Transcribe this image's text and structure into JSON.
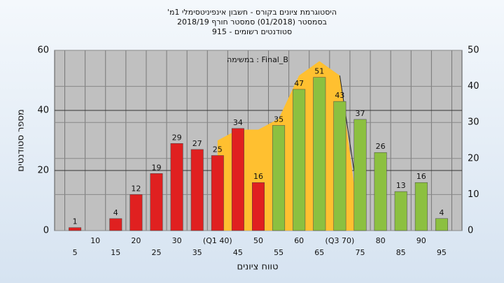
{
  "chart_data": {
    "type": "bar",
    "title": "'היסטוגרמת ציונים בקורס - חשבון אינפיניטסימלי 1מ",
    "subtitle": "בסמסטר  (01/2018)  סמסטר חורף  2018/19",
    "subtitle2": "סטודנטים רשומים - 915",
    "annotation": "במשימה : Final_B",
    "xlabel": "טווח ציונים",
    "ylabel": "מספר סטודנטים",
    "categories": [
      "5",
      "10",
      "15",
      "20",
      "25",
      "30",
      "35",
      "(Q1 40)",
      "45",
      "50",
      "55",
      "60",
      "65",
      "(Q3 70)",
      "75",
      "80",
      "85",
      "90",
      "95"
    ],
    "values": [
      1,
      0,
      4,
      12,
      19,
      29,
      27,
      25,
      34,
      16,
      35,
      47,
      51,
      43,
      37,
      26,
      13,
      16,
      4
    ],
    "colors": [
      "#e02020",
      "#e02020",
      "#e02020",
      "#e02020",
      "#e02020",
      "#e02020",
      "#e02020",
      "#e02020",
      "#e02020",
      "#e02020",
      "#8cc040",
      "#8cc040",
      "#8cc040",
      "#8cc040",
      "#8cc040",
      "#8cc040",
      "#8cc040",
      "#8cc040",
      "#8cc040"
    ],
    "area": {
      "axis": "y2",
      "color": "#ffc030",
      "values": [
        null,
        null,
        null,
        null,
        null,
        null,
        null,
        25,
        28,
        28,
        31,
        43,
        47,
        43,
        null,
        null,
        null,
        null,
        null
      ]
    },
    "ylim": [
      0,
      60
    ],
    "yticks": [
      0,
      20,
      40,
      60
    ],
    "y2lim": [
      0,
      50
    ],
    "y2ticks": [
      0,
      10,
      20,
      30,
      40,
      50
    ],
    "grid": true
  }
}
